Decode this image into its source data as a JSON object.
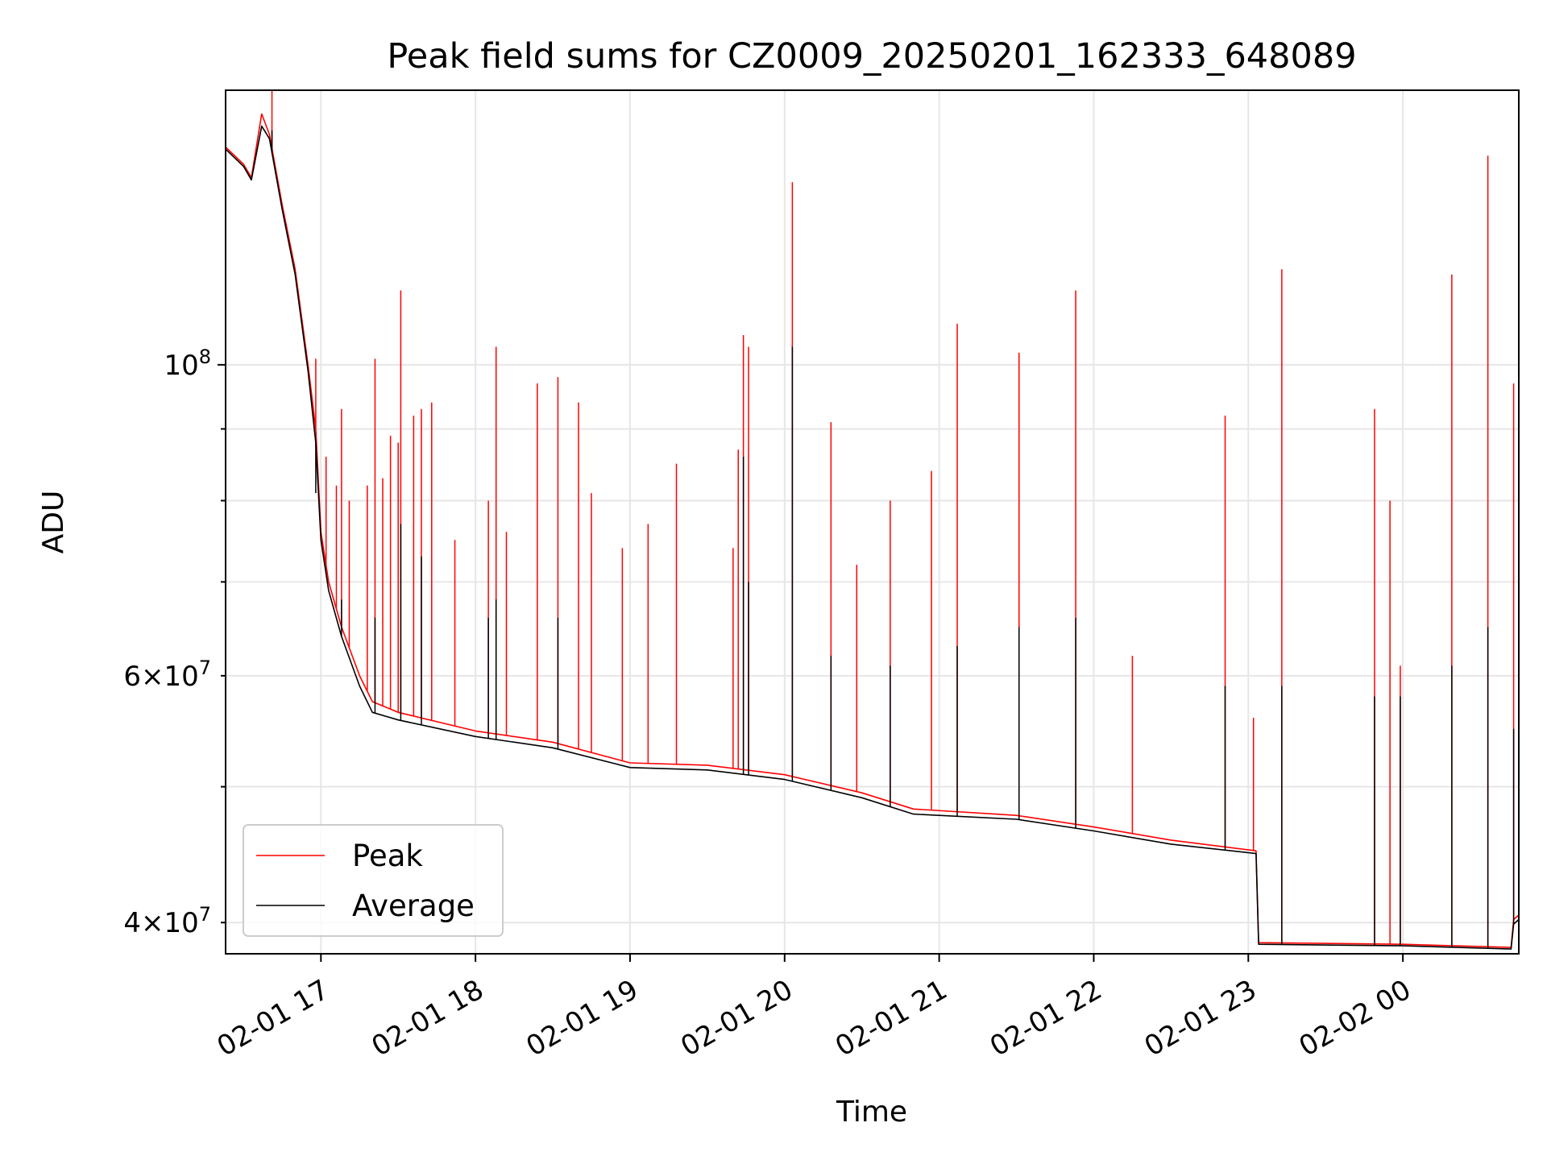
{
  "chart_data": {
    "type": "line",
    "title": "Peak field sums for CZ0009_20250201_162333_648089",
    "xlabel": "Time",
    "ylabel": "ADU",
    "y_scale": "log",
    "ylim": [
      38000000,
      157000000
    ],
    "xlim": [
      "2025-02-01 16:23",
      "2025-02-02 00:45"
    ],
    "x_ticks": [
      "2025-02-01 17:00",
      "2025-02-01 18:00",
      "2025-02-01 19:00",
      "2025-02-01 20:00",
      "2025-02-01 21:00",
      "2025-02-01 22:00",
      "2025-02-01 23:00",
      "2025-02-02 00:00"
    ],
    "x_tick_labels": [
      "02-01 17",
      "02-01 18",
      "02-01 19",
      "02-01 20",
      "02-01 21",
      "02-01 22",
      "02-01 23",
      "02-02 00"
    ],
    "y_major_ticks": [
      100000000
    ],
    "y_major_tick_labels": [
      "10^8"
    ],
    "y_minor_ticks": [
      40000000,
      50000000,
      60000000,
      70000000,
      80000000,
      90000000
    ],
    "y_minor_tick_labels": [
      "4×10^7",
      "",
      "6×10^7",
      "",
      "",
      ""
    ],
    "grid": true,
    "legend_position": "lower-left",
    "series": [
      {
        "name": "Peak",
        "color": "#ff0000",
        "baseline": [
          [
            "2025-02-01 16:23",
            143000000
          ],
          [
            "2025-02-01 16:30",
            139000000
          ],
          [
            "2025-02-01 16:33",
            136000000
          ],
          [
            "2025-02-01 16:37",
            151000000
          ],
          [
            "2025-02-01 16:40",
            146000000
          ],
          [
            "2025-02-01 16:45",
            130000000
          ],
          [
            "2025-02-01 16:50",
            117000000
          ],
          [
            "2025-02-01 16:55",
            100000000
          ],
          [
            "2025-02-01 16:58",
            90000000
          ],
          [
            "2025-02-01 17:00",
            76000000
          ],
          [
            "2025-02-01 17:03",
            70000000
          ],
          [
            "2025-02-01 17:08",
            65000000
          ],
          [
            "2025-02-01 17:15",
            60000000
          ],
          [
            "2025-02-01 17:20",
            57500000
          ],
          [
            "2025-02-01 17:30",
            56500000
          ],
          [
            "2025-02-01 18:00",
            54800000
          ],
          [
            "2025-02-01 18:30",
            53800000
          ],
          [
            "2025-02-01 19:00",
            52000000
          ],
          [
            "2025-02-01 19:30",
            51800000
          ],
          [
            "2025-02-01 20:00",
            51000000
          ],
          [
            "2025-02-01 20:30",
            49500000
          ],
          [
            "2025-02-01 20:50",
            48200000
          ],
          [
            "2025-02-01 21:30",
            47700000
          ],
          [
            "2025-02-01 22:00",
            46800000
          ],
          [
            "2025-02-01 22:30",
            45800000
          ],
          [
            "2025-02-01 23:03",
            45000000
          ],
          [
            "2025-02-01 23:04",
            38700000
          ],
          [
            "2025-02-02 00:00",
            38600000
          ],
          [
            "2025-02-02 00:42",
            38400000
          ],
          [
            "2025-02-02 00:43",
            40200000
          ],
          [
            "2025-02-02 00:45",
            40500000
          ]
        ],
        "spikes": [
          [
            "2025-02-01 16:41",
            157000000
          ],
          [
            "2025-02-01 16:58",
            101000000
          ],
          [
            "2025-02-01 17:02",
            86000000
          ],
          [
            "2025-02-01 17:06",
            82000000
          ],
          [
            "2025-02-01 17:08",
            93000000
          ],
          [
            "2025-02-01 17:11",
            80000000
          ],
          [
            "2025-02-01 17:18",
            82000000
          ],
          [
            "2025-02-01 17:21",
            101000000
          ],
          [
            "2025-02-01 17:24",
            83000000
          ],
          [
            "2025-02-01 17:27",
            89000000
          ],
          [
            "2025-02-01 17:30",
            88000000
          ],
          [
            "2025-02-01 17:31",
            113000000
          ],
          [
            "2025-02-01 17:36",
            92000000
          ],
          [
            "2025-02-01 17:39",
            93000000
          ],
          [
            "2025-02-01 17:43",
            94000000
          ],
          [
            "2025-02-01 17:52",
            75000000
          ],
          [
            "2025-02-01 18:05",
            80000000
          ],
          [
            "2025-02-01 18:08",
            103000000
          ],
          [
            "2025-02-01 18:12",
            76000000
          ],
          [
            "2025-02-01 18:24",
            97000000
          ],
          [
            "2025-02-01 18:32",
            98000000
          ],
          [
            "2025-02-01 18:40",
            94000000
          ],
          [
            "2025-02-01 18:45",
            81000000
          ],
          [
            "2025-02-01 18:57",
            74000000
          ],
          [
            "2025-02-01 19:07",
            77000000
          ],
          [
            "2025-02-01 19:18",
            85000000
          ],
          [
            "2025-02-01 19:40",
            74000000
          ],
          [
            "2025-02-01 19:42",
            87000000
          ],
          [
            "2025-02-01 19:44",
            105000000
          ],
          [
            "2025-02-01 19:46",
            103000000
          ],
          [
            "2025-02-01 20:03",
            135000000
          ],
          [
            "2025-02-01 20:18",
            91000000
          ],
          [
            "2025-02-01 20:28",
            72000000
          ],
          [
            "2025-02-01 20:41",
            80000000
          ],
          [
            "2025-02-01 20:57",
            84000000
          ],
          [
            "2025-02-01 21:07",
            107000000
          ],
          [
            "2025-02-01 21:31",
            102000000
          ],
          [
            "2025-02-01 21:53",
            113000000
          ],
          [
            "2025-02-01 22:15",
            62000000
          ],
          [
            "2025-02-01 22:51",
            92000000
          ],
          [
            "2025-02-01 23:02",
            56000000
          ],
          [
            "2025-02-01 23:13",
            117000000
          ],
          [
            "2025-02-01 23:49",
            93000000
          ],
          [
            "2025-02-01 23:55",
            80000000
          ],
          [
            "2025-02-01 23:59",
            61000000
          ],
          [
            "2025-02-02 00:19",
            116000000
          ],
          [
            "2025-02-02 00:33",
            141000000
          ],
          [
            "2025-02-02 00:43",
            97000000
          ]
        ]
      },
      {
        "name": "Average",
        "color": "#000000",
        "baseline": [
          [
            "2025-02-01 16:23",
            142500000
          ],
          [
            "2025-02-01 16:30",
            138500000
          ],
          [
            "2025-02-01 16:33",
            135500000
          ],
          [
            "2025-02-01 16:37",
            148000000
          ],
          [
            "2025-02-01 16:40",
            145000000
          ],
          [
            "2025-02-01 16:45",
            129000000
          ],
          [
            "2025-02-01 16:50",
            116000000
          ],
          [
            "2025-02-01 16:55",
            99000000
          ],
          [
            "2025-02-01 16:58",
            88000000
          ],
          [
            "2025-02-01 17:00",
            75000000
          ],
          [
            "2025-02-01 17:03",
            69000000
          ],
          [
            "2025-02-01 17:08",
            64000000
          ],
          [
            "2025-02-01 17:15",
            59000000
          ],
          [
            "2025-02-01 17:20",
            56500000
          ],
          [
            "2025-02-01 17:30",
            55800000
          ],
          [
            "2025-02-01 18:00",
            54300000
          ],
          [
            "2025-02-01 18:30",
            53300000
          ],
          [
            "2025-02-01 19:00",
            51600000
          ],
          [
            "2025-02-01 19:30",
            51400000
          ],
          [
            "2025-02-01 20:00",
            50600000
          ],
          [
            "2025-02-01 20:30",
            49100000
          ],
          [
            "2025-02-01 20:50",
            47800000
          ],
          [
            "2025-02-01 21:30",
            47400000
          ],
          [
            "2025-02-01 22:00",
            46500000
          ],
          [
            "2025-02-01 22:30",
            45500000
          ],
          [
            "2025-02-01 23:03",
            44800000
          ],
          [
            "2025-02-01 23:04",
            38600000
          ],
          [
            "2025-02-02 00:00",
            38500000
          ],
          [
            "2025-02-02 00:42",
            38300000
          ],
          [
            "2025-02-02 00:43",
            39900000
          ],
          [
            "2025-02-02 00:45",
            40200000
          ]
        ],
        "spikes": [
          [
            "2025-02-01 16:41",
            147000000
          ],
          [
            "2025-02-01 16:58",
            81000000
          ],
          [
            "2025-02-01 17:08",
            68000000
          ],
          [
            "2025-02-01 17:21",
            66000000
          ],
          [
            "2025-02-01 17:31",
            77000000
          ],
          [
            "2025-02-01 17:39",
            73000000
          ],
          [
            "2025-02-01 18:05",
            66000000
          ],
          [
            "2025-02-01 18:08",
            68000000
          ],
          [
            "2025-02-01 18:32",
            66000000
          ],
          [
            "2025-02-01 19:44",
            86000000
          ],
          [
            "2025-02-01 19:46",
            70000000
          ],
          [
            "2025-02-01 20:03",
            103000000
          ],
          [
            "2025-02-01 20:18",
            62000000
          ],
          [
            "2025-02-01 20:41",
            61000000
          ],
          [
            "2025-02-01 21:07",
            63000000
          ],
          [
            "2025-02-01 21:31",
            65000000
          ],
          [
            "2025-02-01 21:53",
            66000000
          ],
          [
            "2025-02-01 22:51",
            59000000
          ],
          [
            "2025-02-01 23:13",
            59000000
          ],
          [
            "2025-02-01 23:49",
            58000000
          ],
          [
            "2025-02-01 23:59",
            58000000
          ],
          [
            "2025-02-02 00:19",
            61000000
          ],
          [
            "2025-02-02 00:33",
            65000000
          ],
          [
            "2025-02-02 00:43",
            55000000
          ]
        ]
      }
    ]
  }
}
